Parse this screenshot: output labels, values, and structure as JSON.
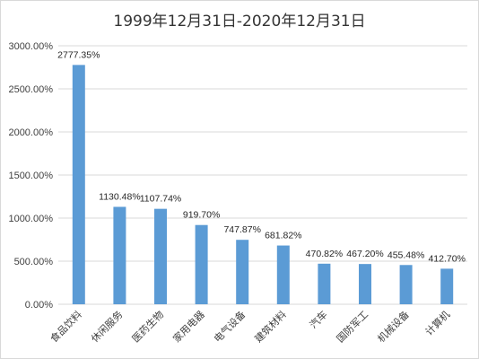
{
  "chart_data": {
    "type": "bar",
    "title": "1999年12月31日-2020年12月31日",
    "xlabel": "",
    "ylabel": "",
    "ylim": [
      0,
      3000
    ],
    "yticks": [
      0,
      500,
      1000,
      1500,
      2000,
      2500,
      3000
    ],
    "ytick_labels": [
      "0.00%",
      "500.00%",
      "1000.00%",
      "1500.00%",
      "2000.00%",
      "2500.00%",
      "3000.00%"
    ],
    "categories": [
      "食品饮料",
      "休闲服务",
      "医药生物",
      "家用电器",
      "电气设备",
      "建筑材料",
      "汽车",
      "国防军工",
      "机械设备",
      "计算机"
    ],
    "values": [
      2777.35,
      1130.48,
      1107.74,
      919.7,
      747.87,
      681.82,
      470.82,
      467.2,
      455.48,
      412.7
    ],
    "data_labels": [
      "2777.35%",
      "1130.48%",
      "1107.74%",
      "919.70%",
      "747.87%",
      "681.82%",
      "470.82%",
      "467.20%",
      "455.48%",
      "412.70%"
    ],
    "grid": true,
    "bar_color": "#5b9bd5",
    "grid_color": "#d9d9d9"
  }
}
